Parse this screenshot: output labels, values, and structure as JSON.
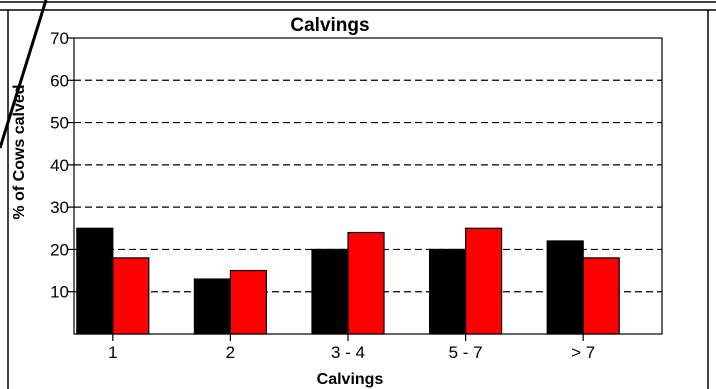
{
  "chart_data": {
    "type": "bar",
    "title": "Calvings",
    "xlabel": "Calvings",
    "ylabel": "% of Cows calved",
    "categories": [
      "1",
      "2",
      "3 - 4",
      "5 - 7",
      "> 7"
    ],
    "series": [
      {
        "values": [
          25,
          13,
          20,
          20,
          22
        ],
        "color": "#000000"
      },
      {
        "values": [
          18,
          15,
          24,
          25,
          18
        ],
        "color": "#ff0000"
      }
    ],
    "ylim": [
      0,
      70
    ],
    "yticks": [
      10,
      20,
      30,
      40,
      50,
      60,
      70
    ],
    "grid": "dashed horizontal"
  }
}
